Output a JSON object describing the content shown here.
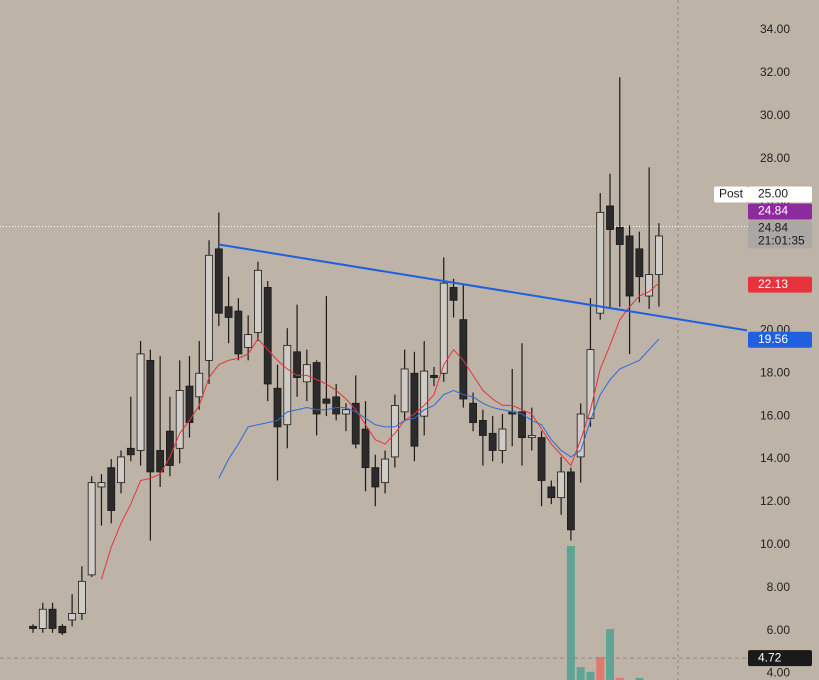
{
  "chart_data": {
    "type": "candlestick",
    "open": [
      6.2,
      6.1,
      7.0,
      6.2,
      6.5,
      6.8,
      8.6,
      12.7,
      13.6,
      12.9,
      14.5,
      14.4,
      18.6,
      14.4,
      15.3,
      14.5,
      17.4,
      16.9,
      18.6,
      23.8,
      21.1,
      20.9,
      19.2,
      19.9,
      22.0,
      17.3,
      15.6,
      19.0,
      17.6,
      18.5,
      16.8,
      16.9,
      16.1,
      16.6,
      15.4,
      13.6,
      12.9,
      14.1,
      16.2,
      18.0,
      16.0,
      17.9,
      18.0,
      22.0,
      20.5,
      16.6,
      15.8,
      15.2,
      14.4,
      16.2,
      16.2,
      15.0,
      15.0,
      12.7,
      12.2,
      13.4,
      14.1,
      15.9,
      20.8,
      25.8,
      24.8,
      24.4,
      23.8,
      21.6,
      22.6
    ],
    "high": [
      6.3,
      7.3,
      7.3,
      6.3,
      7.7,
      9.0,
      13.2,
      13.3,
      14.0,
      14.4,
      16.9,
      19.5,
      19.1,
      18.8,
      16.9,
      18.6,
      18.8,
      19.5,
      24.2,
      25.5,
      22.5,
      21.5,
      20.7,
      23.2,
      22.3,
      18.4,
      20.1,
      21.2,
      19.1,
      18.6,
      21.6,
      17.5,
      16.6,
      17.9,
      16.7,
      14.2,
      14.4,
      17.0,
      19.1,
      19.0,
      19.5,
      18.3,
      23.4,
      22.4,
      22.1,
      17.1,
      16.3,
      16.0,
      16.1,
      18.2,
      19.4,
      16.4,
      15.3,
      13.0,
      14.1,
      13.6,
      16.6,
      21.5,
      26.4,
      27.3,
      31.8,
      24.9,
      24.6,
      27.6,
      25.0
    ],
    "low": [
      5.9,
      5.9,
      5.9,
      5.8,
      6.2,
      6.5,
      8.5,
      10.9,
      11.0,
      12.4,
      13.9,
      13.7,
      10.2,
      12.7,
      13.2,
      13.8,
      15.0,
      16.3,
      17.5,
      20.2,
      19.4,
      18.6,
      18.6,
      19.5,
      16.7,
      13.0,
      14.5,
      16.9,
      16.7,
      15.1,
      16.0,
      15.8,
      15.3,
      14.5,
      12.5,
      11.8,
      12.4,
      13.6,
      15.8,
      13.9,
      15.1,
      17.4,
      17.6,
      20.6,
      16.4,
      15.3,
      13.7,
      13.9,
      13.8,
      14.6,
      13.7,
      14.4,
      11.8,
      11.9,
      11.4,
      10.2,
      12.9,
      15.5,
      20.5,
      21.0,
      21.1,
      18.9,
      21.3,
      21.0,
      21.1
    ],
    "close": [
      6.1,
      7.0,
      6.1,
      5.9,
      6.8,
      8.3,
      12.9,
      12.9,
      11.6,
      14.1,
      14.2,
      18.9,
      13.4,
      13.4,
      13.7,
      17.2,
      15.7,
      18.0,
      23.5,
      20.8,
      20.6,
      18.9,
      19.8,
      22.8,
      17.5,
      15.5,
      19.3,
      17.8,
      18.4,
      16.1,
      16.6,
      16.1,
      16.3,
      14.7,
      13.6,
      12.7,
      14.0,
      16.5,
      18.2,
      14.6,
      18.1,
      17.8,
      22.2,
      21.4,
      16.8,
      15.7,
      15.1,
      14.4,
      15.4,
      16.1,
      15.0,
      15.1,
      13.0,
      12.2,
      13.4,
      10.7,
      16.1,
      19.1,
      25.5,
      24.7,
      24.0,
      21.6,
      22.5,
      22.6,
      24.4
    ],
    "up_color": "#cfcbc6",
    "down_color": "#2b2b2b",
    "series": [
      {
        "color": "#e8333c",
        "values": [
          null,
          null,
          null,
          null,
          null,
          null,
          null,
          8.4,
          9.9,
          11.0,
          11.9,
          13.0,
          13.1,
          13.3,
          14.1,
          15.2,
          15.8,
          16.5,
          17.8,
          18.4,
          18.6,
          18.7,
          18.9,
          19.6,
          19.1,
          18.6,
          18.2,
          17.9,
          17.9,
          17.7,
          17.5,
          17.2,
          16.8,
          16.3,
          15.6,
          14.9,
          14.7,
          15.2,
          15.8,
          16.1,
          16.5,
          17.0,
          18.4,
          19.1,
          18.6,
          17.9,
          17.2,
          16.8,
          16.5,
          16.5,
          16.3,
          16.1,
          15.4,
          14.7,
          14.2,
          13.7,
          14.9,
          16.3,
          18.2,
          19.3,
          20.5,
          21.1,
          21.6,
          21.8,
          22.2
        ]
      },
      {
        "color": "#2f6bd8",
        "values": [
          null,
          null,
          null,
          null,
          null,
          null,
          null,
          null,
          null,
          null,
          null,
          null,
          null,
          null,
          null,
          null,
          null,
          null,
          null,
          13.1,
          14.0,
          14.7,
          15.5,
          15.6,
          15.7,
          15.8,
          16.2,
          16.3,
          16.4,
          16.3,
          16.3,
          16.4,
          16.4,
          16.2,
          15.9,
          15.6,
          15.5,
          15.5,
          15.8,
          15.9,
          16.3,
          16.5,
          17.0,
          17.2,
          17.0,
          16.9,
          16.6,
          16.4,
          16.3,
          16.2,
          16.1,
          15.8,
          15.6,
          14.9,
          14.4,
          14.1,
          14.4,
          15.8,
          17.0,
          17.7,
          18.2,
          18.4,
          18.6,
          19.1,
          19.6
        ]
      }
    ],
    "trendline": {
      "x": [
        19,
        73
      ],
      "values": [
        24.0,
        20.0
      ],
      "color": "#1f5fe0"
    },
    "volume": {
      "x": [
        55,
        56,
        57,
        58,
        59,
        60,
        62
      ],
      "values": [
        19.7,
        1.9,
        1.2,
        3.4,
        7.5,
        0.3,
        0.3
      ],
      "colors": [
        "#5fa595",
        "#5fa595",
        "#5fa595",
        "#e07a70",
        "#5fa595",
        "#e07a70",
        "#5fa595"
      ]
    },
    "y2lim": [
      0,
      100
    ],
    "ylim": [
      3.7,
      35.4
    ],
    "yticks": [
      {
        "value": 4,
        "label": "4.00"
      },
      {
        "value": 6,
        "label": "6.00"
      },
      {
        "value": 8,
        "label": "8.00"
      },
      {
        "value": 10,
        "label": "10.00"
      },
      {
        "value": 12,
        "label": "12.00"
      },
      {
        "value": 14,
        "label": "14.00"
      },
      {
        "value": 16,
        "label": "16.00"
      },
      {
        "value": 18,
        "label": "18.00"
      },
      {
        "value": 20,
        "label": "20.00"
      },
      {
        "value": 22,
        "label": "22.00"
      },
      {
        "value": 24,
        "label": "24.00"
      },
      {
        "value": 26,
        "label": "26.00"
      },
      {
        "value": 28,
        "label": "28.00"
      },
      {
        "value": 30,
        "label": "30.00"
      },
      {
        "value": 32,
        "label": "32.00"
      },
      {
        "value": 34,
        "label": "34.00"
      }
    ],
    "price_tags": [
      {
        "value": 4.72,
        "label": "4.72",
        "bg": "#1a1a1a",
        "fg": "#ffffff",
        "line": true
      },
      {
        "value": 19.56,
        "label": "19.56",
        "bg": "#1f5fe0",
        "fg": "#ffffff"
      },
      {
        "value": 22.13,
        "label": "22.13",
        "bg": "#e8333c",
        "fg": "#ffffff"
      },
      {
        "value": 24.84,
        "label": "24.84",
        "sublabel": "21:01:35",
        "bg": "#aaa7a5",
        "fg": "#1a1a1a",
        "line": true
      },
      {
        "value": 24.84,
        "label": "24.84",
        "bg": "#8e2aa0",
        "fg": "#ffffff"
      },
      {
        "value": 25.0,
        "label": "25.00",
        "name": "Post",
        "bg": "#ffffff",
        "fg": "#1a1a1a"
      }
    ]
  }
}
